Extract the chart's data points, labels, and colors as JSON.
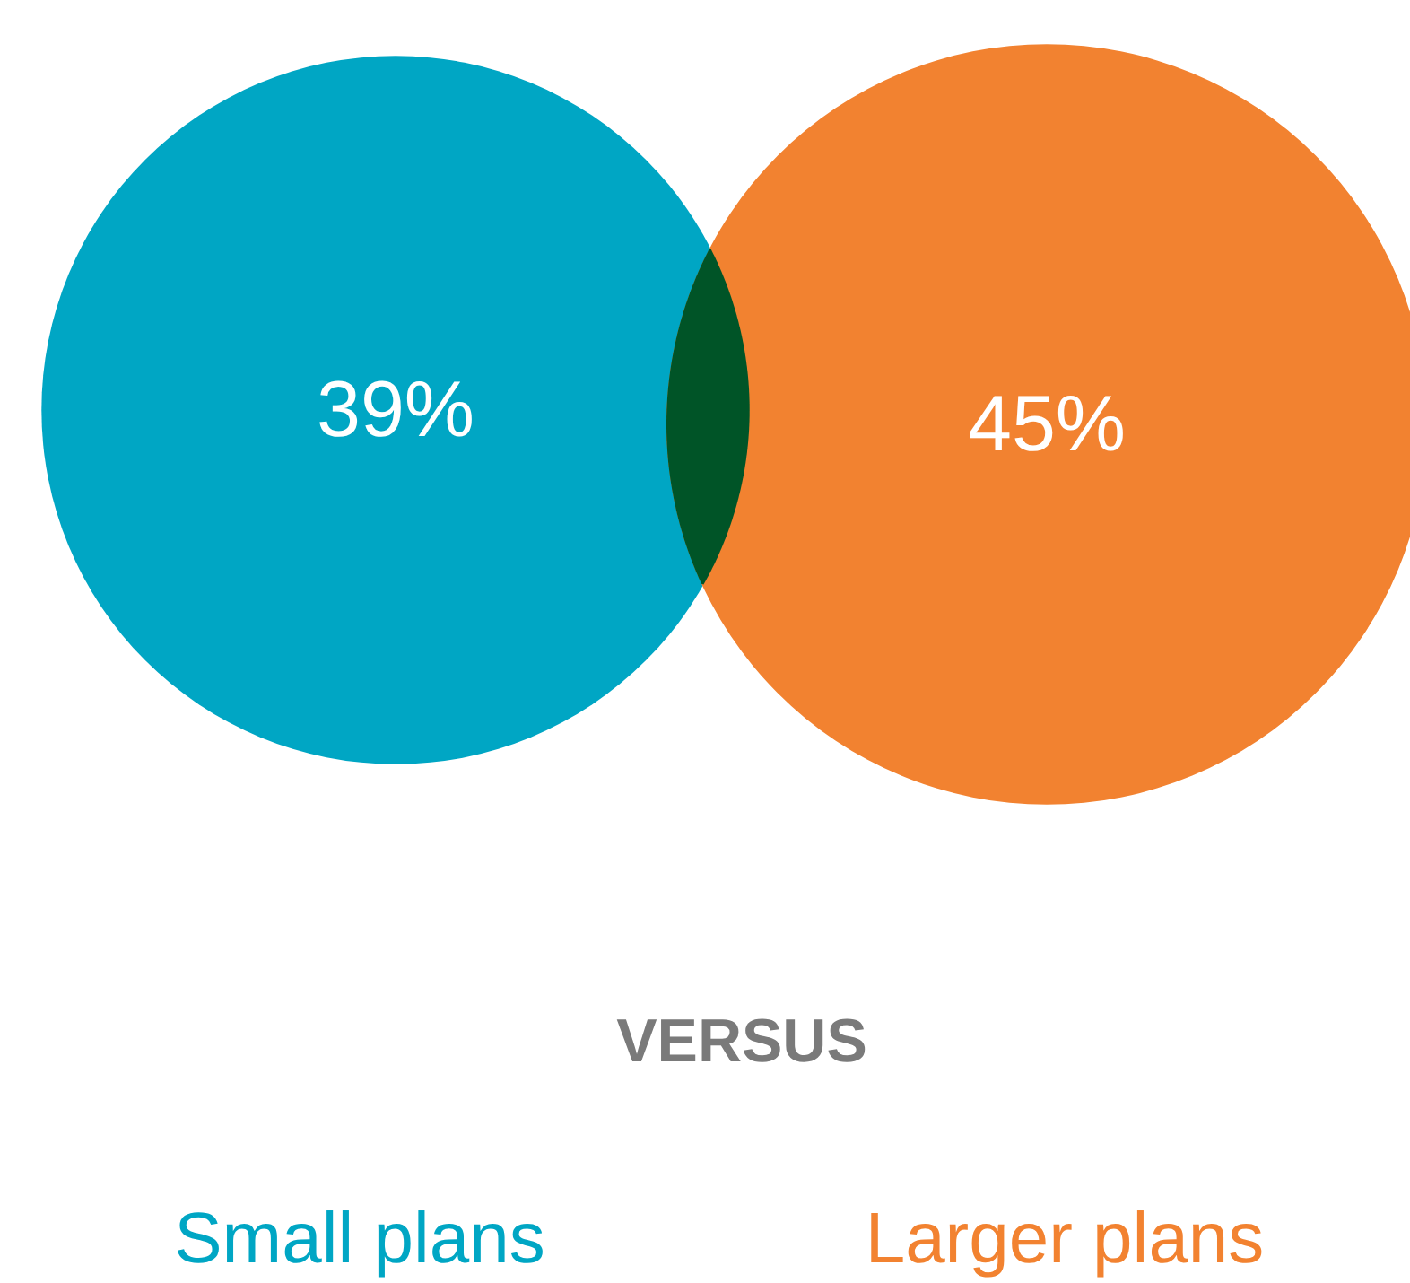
{
  "chart_data": {
    "type": "other",
    "categories": [
      "Small plans",
      "Larger plans"
    ],
    "values": [
      39,
      45
    ],
    "value_labels": [
      "39%",
      "45%"
    ],
    "colors": [
      "#00a6c4",
      "#f28230"
    ],
    "annotations": [
      "VERSUS"
    ]
  }
}
